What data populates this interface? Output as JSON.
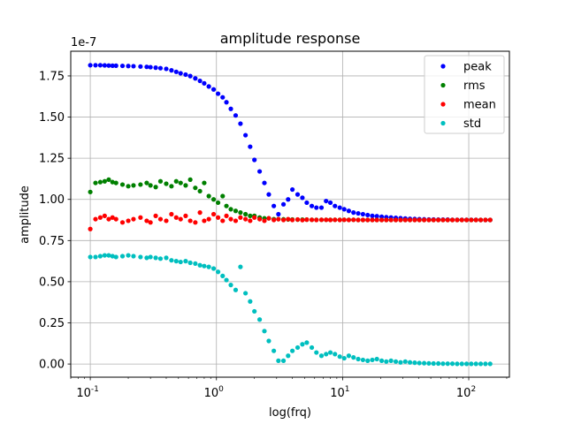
{
  "chart_data": {
    "type": "scatter",
    "title": "amplitude response",
    "xlabel": "log(frq)",
    "ylabel": "amplitude",
    "xscale": "log",
    "xlim": [
      0.07,
      210
    ],
    "ylim": [
      -0.08,
      1.9
    ],
    "y_offset_label": "1e-7",
    "grid": true,
    "legend_placement": "top-right",
    "x_ticks": [
      0.1,
      1,
      10,
      100
    ],
    "x_tick_labels": [
      "10^-1",
      "10^0",
      "10^1",
      "10^2"
    ],
    "y_ticks": [
      0.0,
      0.25,
      0.5,
      0.75,
      1.0,
      1.25,
      1.5,
      1.75
    ],
    "y_tick_labels": [
      "0.00",
      "0.25",
      "0.50",
      "0.75",
      "1.00",
      "1.25",
      "1.50",
      "1.75"
    ],
    "x": [
      0.1,
      0.11,
      0.12,
      0.13,
      0.14,
      0.15,
      0.16,
      0.18,
      0.2,
      0.22,
      0.25,
      0.28,
      0.3,
      0.33,
      0.36,
      0.4,
      0.44,
      0.48,
      0.52,
      0.57,
      0.62,
      0.68,
      0.74,
      0.8,
      0.87,
      0.95,
      1.03,
      1.12,
      1.2,
      1.3,
      1.42,
      1.55,
      1.7,
      1.85,
      2.0,
      2.2,
      2.4,
      2.6,
      2.85,
      3.1,
      3.4,
      3.7,
      4.0,
      4.4,
      4.8,
      5.2,
      5.7,
      6.2,
      6.8,
      7.4,
      8.0,
      8.7,
      9.5,
      10.3,
      11.2,
      12.2,
      13.3,
      14.5,
      15.8,
      17.2,
      18.7,
      20.4,
      22.2,
      24.2,
      26.4,
      28.8,
      31.4,
      34.2,
      37.3,
      40.6,
      44.3,
      48.3,
      52.6,
      57.4,
      62.5,
      68.1,
      74.2,
      80.9,
      88.2,
      96.1,
      104.7,
      114.1,
      124.4,
      135.6,
      147.8
    ],
    "series": [
      {
        "name": "peak",
        "color": "#0000ff",
        "values": [
          1.815,
          1.815,
          1.815,
          1.814,
          1.813,
          1.812,
          1.812,
          1.811,
          1.81,
          1.809,
          1.807,
          1.805,
          1.803,
          1.8,
          1.797,
          1.793,
          1.784,
          1.775,
          1.766,
          1.758,
          1.749,
          1.735,
          1.72,
          1.705,
          1.686,
          1.668,
          1.642,
          1.62,
          1.59,
          1.55,
          1.51,
          1.46,
          1.39,
          1.32,
          1.24,
          1.17,
          1.1,
          1.03,
          0.96,
          0.91,
          0.97,
          1.0,
          1.06,
          1.03,
          1.01,
          0.98,
          0.96,
          0.95,
          0.95,
          0.99,
          0.98,
          0.96,
          0.95,
          0.94,
          0.93,
          0.92,
          0.915,
          0.91,
          0.905,
          0.9,
          0.898,
          0.895,
          0.892,
          0.89,
          0.888,
          0.886,
          0.884,
          0.882,
          0.881,
          0.88,
          0.879,
          0.878,
          0.878,
          0.877,
          0.877,
          0.877,
          0.876,
          0.876,
          0.876,
          0.876,
          0.876,
          0.876,
          0.875,
          0.875,
          0.875
        ]
      },
      {
        "name": "rms",
        "color": "#008000",
        "values": [
          1.045,
          1.1,
          1.105,
          1.11,
          1.12,
          1.105,
          1.1,
          1.09,
          1.08,
          1.085,
          1.09,
          1.1,
          1.085,
          1.075,
          1.11,
          1.095,
          1.08,
          1.11,
          1.1,
          1.085,
          1.12,
          1.07,
          1.05,
          1.1,
          1.02,
          1.0,
          0.98,
          1.02,
          0.96,
          0.94,
          0.93,
          0.92,
          0.91,
          0.9,
          0.9,
          0.89,
          0.885,
          0.885,
          0.88,
          0.88,
          0.879,
          0.878,
          0.878,
          0.877,
          0.877,
          0.877,
          0.876,
          0.876,
          0.876,
          0.876,
          0.876,
          0.876,
          0.876,
          0.876,
          0.876,
          0.876,
          0.875,
          0.875,
          0.875,
          0.875,
          0.875,
          0.875,
          0.875,
          0.875,
          0.875,
          0.875,
          0.875,
          0.875,
          0.875,
          0.875,
          0.875,
          0.875,
          0.875,
          0.875,
          0.875,
          0.875,
          0.875,
          0.875,
          0.875,
          0.875,
          0.875,
          0.875,
          0.875,
          0.875,
          0.875
        ]
      },
      {
        "name": "mean",
        "color": "#ff0000",
        "values": [
          0.82,
          0.88,
          0.89,
          0.9,
          0.88,
          0.89,
          0.88,
          0.86,
          0.87,
          0.88,
          0.89,
          0.87,
          0.86,
          0.9,
          0.88,
          0.87,
          0.91,
          0.89,
          0.88,
          0.9,
          0.87,
          0.86,
          0.92,
          0.87,
          0.88,
          0.91,
          0.89,
          0.87,
          0.9,
          0.88,
          0.87,
          0.89,
          0.88,
          0.87,
          0.89,
          0.88,
          0.87,
          0.885,
          0.875,
          0.88,
          0.875,
          0.88,
          0.875,
          0.878,
          0.874,
          0.877,
          0.876,
          0.875,
          0.876,
          0.876,
          0.875,
          0.876,
          0.875,
          0.876,
          0.875,
          0.876,
          0.875,
          0.875,
          0.875,
          0.875,
          0.875,
          0.875,
          0.875,
          0.875,
          0.875,
          0.875,
          0.875,
          0.875,
          0.875,
          0.875,
          0.875,
          0.875,
          0.875,
          0.875,
          0.875,
          0.875,
          0.875,
          0.875,
          0.875,
          0.875,
          0.875,
          0.875,
          0.875,
          0.875,
          0.875
        ]
      },
      {
        "name": "std",
        "color": "#00bfbf",
        "values": [
          0.65,
          0.65,
          0.655,
          0.66,
          0.66,
          0.655,
          0.65,
          0.655,
          0.66,
          0.655,
          0.65,
          0.645,
          0.65,
          0.645,
          0.64,
          0.645,
          0.63,
          0.625,
          0.62,
          0.625,
          0.615,
          0.61,
          0.6,
          0.595,
          0.59,
          0.58,
          0.56,
          0.535,
          0.51,
          0.48,
          0.45,
          0.59,
          0.43,
          0.38,
          0.32,
          0.27,
          0.2,
          0.14,
          0.08,
          0.02,
          0.02,
          0.05,
          0.08,
          0.1,
          0.12,
          0.13,
          0.1,
          0.07,
          0.05,
          0.06,
          0.07,
          0.06,
          0.045,
          0.035,
          0.05,
          0.04,
          0.03,
          0.025,
          0.02,
          0.025,
          0.03,
          0.02,
          0.015,
          0.02,
          0.015,
          0.01,
          0.015,
          0.01,
          0.008,
          0.006,
          0.005,
          0.004,
          0.003,
          0.003,
          0.002,
          0.002,
          0.002,
          0.001,
          0.001,
          0.001,
          0.001,
          0.001,
          0.001,
          0.001,
          0.001
        ]
      }
    ]
  },
  "legend": [
    {
      "label": "peak",
      "color": "#0000ff"
    },
    {
      "label": "rms",
      "color": "#008000"
    },
    {
      "label": "mean",
      "color": "#ff0000"
    },
    {
      "label": "std",
      "color": "#00bfbf"
    }
  ]
}
